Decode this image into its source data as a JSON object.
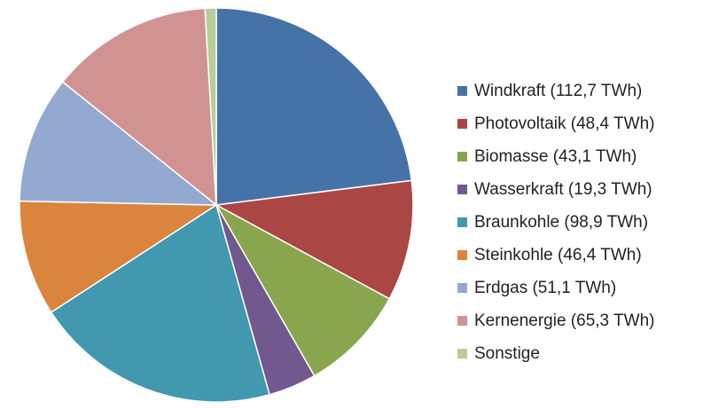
{
  "chart_data": {
    "type": "pie",
    "title": "",
    "start_angle_deg": 0,
    "direction": "clockwise",
    "legend_position": "right",
    "slices": [
      {
        "label": "Windkraft (112,7 TWh)",
        "value": 112.7,
        "color": "#4573A7"
      },
      {
        "label": "Photovoltaik (48,4 TWh)",
        "value": 48.4,
        "color": "#AA4643"
      },
      {
        "label": "Biomasse (43,1 TWh)",
        "value": 43.1,
        "color": "#89A54E"
      },
      {
        "label": "Wasserkraft (19,3 TWh)",
        "value": 19.3,
        "color": "#71588F"
      },
      {
        "label": "Braunkohle (98,9 TWh)",
        "value": 98.9,
        "color": "#4198AF"
      },
      {
        "label": "Steinkohle (46,4 TWh)",
        "value": 46.4,
        "color": "#DB843D"
      },
      {
        "label": "Erdgas (51,1 TWh)",
        "value": 51.1,
        "color": "#93A9CF"
      },
      {
        "label": "Kernenergie (65,3 TWh)",
        "value": 65.3,
        "color": "#D19392"
      },
      {
        "label": "Sonstige",
        "value": 4.5,
        "color": "#B9CD96"
      }
    ]
  }
}
